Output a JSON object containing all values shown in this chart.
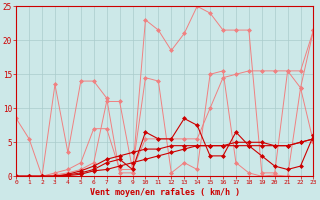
{
  "x": [
    0,
    1,
    2,
    3,
    4,
    5,
    6,
    7,
    8,
    9,
    10,
    11,
    12,
    13,
    14,
    15,
    16,
    17,
    18,
    19,
    20,
    21,
    22,
    23
  ],
  "line_pink1": [
    8.5,
    5.5,
    0,
    13.5,
    3.5,
    14.0,
    14.0,
    11.5,
    0.5,
    0.5,
    23.0,
    21.5,
    18.5,
    21.0,
    25.0,
    24.0,
    21.5,
    21.5,
    21.5,
    0.5,
    0.5,
    15.5,
    13.0,
    21.5
  ],
  "line_pink2": [
    0.0,
    0.0,
    0.0,
    0.2,
    0.5,
    1.0,
    2.0,
    11.0,
    11.0,
    1.0,
    14.5,
    14.0,
    0.5,
    2.0,
    1.0,
    15.0,
    15.5,
    2.0,
    0.5,
    0.0,
    0.2,
    0.0,
    13.0,
    5.0
  ],
  "line_pink3": [
    0.0,
    0.0,
    0.0,
    0.5,
    1.0,
    2.0,
    7.0,
    7.0,
    1.0,
    1.0,
    5.5,
    5.5,
    5.5,
    5.5,
    5.5,
    10.0,
    14.5,
    15.0,
    15.5,
    15.5,
    15.5,
    15.5,
    15.5,
    21.5
  ],
  "line_red1": [
    0.0,
    0.0,
    0.0,
    0.0,
    0.2,
    0.5,
    1.0,
    2.0,
    2.5,
    1.0,
    6.5,
    5.5,
    5.5,
    8.5,
    7.5,
    3.0,
    3.0,
    6.5,
    4.5,
    3.0,
    1.5,
    1.0,
    1.5,
    6.0
  ],
  "line_red2": [
    0.0,
    0.0,
    0.0,
    0.0,
    0.3,
    0.8,
    1.5,
    2.5,
    3.0,
    3.5,
    4.0,
    4.0,
    4.5,
    4.5,
    4.5,
    4.5,
    4.5,
    5.0,
    5.0,
    5.0,
    4.5,
    4.5,
    5.0,
    5.5
  ],
  "line_red3": [
    0.0,
    0.0,
    0.0,
    0.0,
    0.1,
    0.3,
    0.8,
    1.0,
    1.5,
    2.0,
    2.5,
    3.0,
    3.5,
    4.0,
    4.5,
    4.5,
    4.5,
    4.5,
    4.5,
    4.5,
    4.5,
    4.5,
    5.0,
    5.5
  ],
  "bg_color": "#cce8e8",
  "grid_color": "#aacccc",
  "pink_color": "#f08080",
  "red_color": "#cc0000",
  "xlabel": "Vent moyen/en rafales ( km/h )",
  "xlim": [
    0,
    23
  ],
  "ylim": [
    0,
    25
  ],
  "yticks": [
    0,
    5,
    10,
    15,
    20,
    25
  ]
}
